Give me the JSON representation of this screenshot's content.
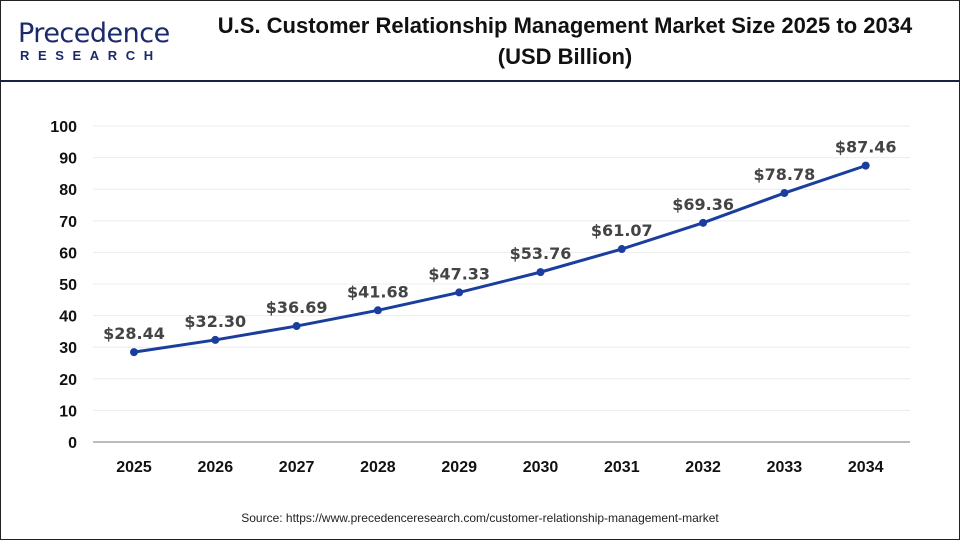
{
  "logo": {
    "text": "Precedence",
    "subtext": "RESEARCH"
  },
  "chart_data": {
    "type": "line",
    "title": "U.S. Customer Relationship Management Market Size 2025 to 2034",
    "subtitle": "(USD Billion)",
    "categories": [
      "2025",
      "2026",
      "2027",
      "2028",
      "2029",
      "2030",
      "2031",
      "2032",
      "2033",
      "2034"
    ],
    "series": [
      {
        "values": [
          28.44,
          32.3,
          36.69,
          41.68,
          47.33,
          53.76,
          61.07,
          69.36,
          78.78,
          87.46
        ]
      }
    ],
    "data_labels": [
      "$28.44",
      "$32.30",
      "$36.69",
      "$41.68",
      "$47.33",
      "$53.76",
      "$61.07",
      "$69.36",
      "$78.78",
      "$87.46"
    ],
    "yticks": [
      0,
      10,
      20,
      30,
      40,
      50,
      60,
      70,
      80,
      90,
      100
    ],
    "ylim": [
      0,
      100
    ],
    "grid": true,
    "xlabel": "",
    "ylabel": "",
    "line_color": "#1a3e9e"
  },
  "source": "Source: https://www.precedenceresearch.com/customer-relationship-management-market"
}
